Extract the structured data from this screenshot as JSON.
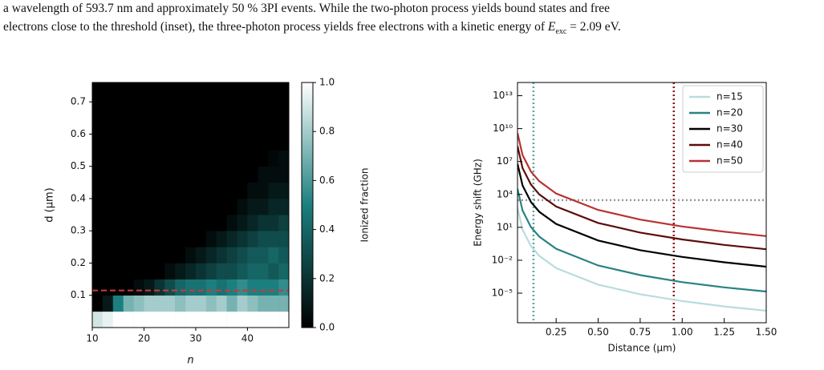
{
  "caption": [
    "a wavelength of 593.7 nm and approximately 50 % 3PI events.  While the two-photon process yields bound states and free",
    "electrons close to the threshold (inset), the three-photon process yields free electrons with a kinetic energy of ",
    "E",
    "exc",
    " = 2.09 eV."
  ],
  "chart_data": [
    {
      "type": "heatmap",
      "xlabel": "n",
      "ylabel": "d (μm)",
      "colorbar_label": "Ionized fraction",
      "xlim": [
        10,
        48
      ],
      "ylim": [
        0,
        0.76
      ],
      "xticks": [
        10,
        20,
        30,
        40
      ],
      "yticks": [
        0.1,
        0.2,
        0.3,
        0.4,
        0.5,
        0.6,
        0.7
      ],
      "xbins": [
        10,
        12,
        14,
        16,
        18,
        20,
        22,
        24,
        26,
        28,
        30,
        32,
        34,
        36,
        38,
        40,
        42,
        44,
        46,
        48
      ],
      "ybins": [
        0,
        0.05,
        0.1,
        0.15,
        0.2,
        0.25,
        0.3,
        0.35,
        0.4,
        0.45,
        0.5,
        0.55,
        0.6,
        0.65,
        0.7,
        0.75
      ],
      "z": [
        [
          0.9,
          0.95,
          1,
          1,
          1,
          1,
          1,
          1,
          1,
          1,
          1,
          1,
          1,
          1,
          1,
          1,
          1,
          1,
          1
        ],
        [
          0,
          0.1,
          0.5,
          0.7,
          0.75,
          0.8,
          0.8,
          0.8,
          0.75,
          0.8,
          0.8,
          0.75,
          0.8,
          0.7,
          0.8,
          0.75,
          0.7,
          0.7,
          0.7
        ],
        [
          0,
          0,
          0,
          0,
          0.05,
          0.1,
          0.2,
          0.3,
          0.4,
          0.45,
          0.45,
          0.5,
          0.45,
          0.5,
          0.55,
          0.5,
          0.5,
          0.5,
          0.55
        ],
        [
          0,
          0,
          0,
          0,
          0,
          0,
          0,
          0.05,
          0.1,
          0.15,
          0.2,
          0.25,
          0.3,
          0.3,
          0.35,
          0.4,
          0.4,
          0.35,
          0.4
        ],
        [
          0,
          0,
          0,
          0,
          0,
          0,
          0,
          0,
          0,
          0.05,
          0.1,
          0.15,
          0.2,
          0.25,
          0.3,
          0.35,
          0.35,
          0.4,
          0.35
        ],
        [
          0,
          0,
          0,
          0,
          0,
          0,
          0,
          0,
          0,
          0,
          0,
          0.05,
          0.1,
          0.15,
          0.2,
          0.25,
          0.3,
          0.3,
          0.3
        ],
        [
          0,
          0,
          0,
          0,
          0,
          0,
          0,
          0,
          0,
          0,
          0,
          0,
          0,
          0.05,
          0.1,
          0.15,
          0.2,
          0.2,
          0.25
        ],
        [
          0,
          0,
          0,
          0,
          0,
          0,
          0,
          0,
          0,
          0,
          0,
          0,
          0,
          0,
          0.05,
          0.1,
          0.1,
          0.15,
          0.15
        ],
        [
          0,
          0,
          0,
          0,
          0,
          0,
          0,
          0,
          0,
          0,
          0,
          0,
          0,
          0,
          0,
          0.05,
          0.05,
          0.1,
          0.1
        ],
        [
          0,
          0,
          0,
          0,
          0,
          0,
          0,
          0,
          0,
          0,
          0,
          0,
          0,
          0,
          0,
          0,
          0.05,
          0.05,
          0.05
        ],
        [
          0,
          0,
          0,
          0,
          0,
          0,
          0,
          0,
          0,
          0,
          0,
          0,
          0,
          0,
          0,
          0,
          0,
          0.03,
          0.05
        ],
        [
          0,
          0,
          0,
          0,
          0,
          0,
          0,
          0,
          0,
          0,
          0,
          0,
          0,
          0,
          0,
          0,
          0,
          0,
          0
        ],
        [
          0,
          0,
          0,
          0,
          0,
          0,
          0,
          0,
          0,
          0,
          0,
          0,
          0,
          0,
          0,
          0,
          0,
          0,
          0
        ],
        [
          0,
          0,
          0,
          0,
          0,
          0,
          0,
          0,
          0,
          0,
          0,
          0,
          0,
          0,
          0,
          0,
          0,
          0,
          0
        ],
        [
          0,
          0,
          0,
          0,
          0,
          0,
          0,
          0,
          0,
          0,
          0,
          0,
          0,
          0,
          0,
          0,
          0,
          0,
          0
        ]
      ],
      "colormap": [
        "#000000",
        "#1c7f7f",
        "#ffffff"
      ],
      "clim": [
        0,
        1
      ],
      "cticks": [
        {
          "value": 0,
          "label": "0.0"
        },
        0.2,
        0.4,
        0.6,
        0.8,
        {
          "value": 1,
          "label": "1.0"
        }
      ],
      "hlines": [
        {
          "value": 0.115,
          "color": "#c23b3b"
        }
      ]
    },
    {
      "type": "line",
      "xlabel": "Distance (μm)",
      "ylabel": "Energy shift (GHz)",
      "ylog": true,
      "legend": "upper right",
      "xlim": [
        0.02,
        1.5
      ],
      "ylim": [
        2e-08,
        160000000000000.0
      ],
      "xticks": [
        0.25,
        {
          "value": 0.5,
          "label": "0.50"
        },
        0.75,
        {
          "value": 1,
          "label": "1.00"
        },
        1.25,
        {
          "value": 1.5,
          "label": "1.50"
        }
      ],
      "yticks": [
        {
          "value": 10000000000000.0,
          "label": "10¹³"
        },
        {
          "value": 10000000000.0,
          "label": "10¹⁰"
        },
        {
          "value": 10000000.0,
          "label": "10⁷"
        },
        {
          "value": 10000.0,
          "label": "10⁴"
        },
        {
          "value": 10,
          "label": "10¹"
        },
        {
          "value": 0.01,
          "label": "10⁻²"
        },
        {
          "value": 1e-05,
          "label": "10⁻⁵"
        }
      ],
      "x": [
        0.02,
        0.05,
        0.1,
        0.15,
        0.25,
        0.5,
        0.75,
        1.0,
        1.25,
        1.5
      ],
      "series": [
        {
          "name": "n=15",
          "color": "#b9dcdc",
          "values": [
            600,
            6.2,
            0.19,
            0.025,
            0.0019,
            6e-05,
            7.9e-06,
            1.9e-06,
            6.2e-07,
            2.5e-07
          ]
        },
        {
          "name": "n=20",
          "color": "#2a8282",
          "values": [
            33000,
            340,
            10.5,
            1.4,
            0.11,
            0.0033,
            0.00044,
            0.0001,
            3.4e-05,
            1.4e-05
          ]
        },
        {
          "name": "n=30",
          "color": "#000000",
          "values": [
            6300000.0,
            65000,
            2000,
            260,
            20,
            0.63,
            0.083,
            0.02,
            0.0065,
            0.0026
          ]
        },
        {
          "name": "n=40",
          "color": "#5c0d0d",
          "values": [
            250000000.0,
            2500000.0,
            78000,
            10000,
            790,
            25,
            3.3,
            0.78,
            0.25,
            0.1
          ]
        },
        {
          "name": "n=50",
          "color": "#b83232",
          "values": [
            3800000000.0,
            39000000.0,
            1200000.0,
            160000,
            12000,
            390,
            51,
            12,
            4.0,
            1.6
          ]
        }
      ],
      "vlines": [
        {
          "value": 0.115,
          "color": "#5fa3a3"
        },
        {
          "value": 0.95,
          "color": "#8b1a1a"
        }
      ],
      "hlines": [
        {
          "value": 3000,
          "color": "#999999"
        }
      ]
    }
  ]
}
